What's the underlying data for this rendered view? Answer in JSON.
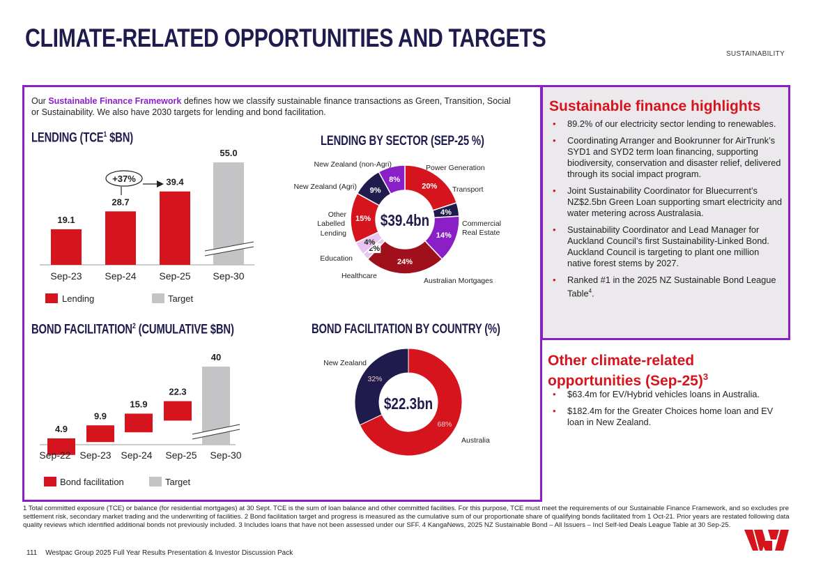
{
  "title": "CLIMATE-RELATED OPPORTUNITIES AND TARGETS",
  "section_tag": "SUSTAINABILITY",
  "intro": {
    "prefix": "Our ",
    "highlight": "Sustainable Finance Framework",
    "suffix": " defines how we classify sustainable finance transactions as Green, Transition, Social or Sustainability. We also have 2030 targets for lending and bond facilitation."
  },
  "headings": {
    "lending_pre": "LENDING (TCE",
    "lending_sup": "1",
    "lending_post": " $BN)",
    "sector": "LENDING BY SECTOR (SEP-25 %)",
    "bond_pre": "BOND FACILITATION",
    "bond_sup": "2",
    "bond_post": " (CUMULATIVE $BN)",
    "country": "BOND FACILITATION BY COUNTRY (%)"
  },
  "colors": {
    "red": "#d5141d",
    "grey": "#c4c3c5",
    "navy": "#1f1c4d",
    "purple": "#8a1fc7",
    "maroon": "#a0101c",
    "pink": "#e8c4f0"
  },
  "chart_data": [
    {
      "id": "lending",
      "type": "bar",
      "title": "LENDING (TCE1 $BN)",
      "categories": [
        "Sep-23",
        "Sep-24",
        "Sep-25",
        "Sep-30"
      ],
      "series": [
        {
          "name": "Lending",
          "values": [
            19.1,
            28.7,
            39.4,
            null
          ]
        },
        {
          "name": "Target",
          "values": [
            null,
            null,
            null,
            55.0
          ]
        }
      ],
      "value_labels": [
        "19.1",
        "28.7",
        "39.4",
        "55.0"
      ],
      "annotation": "+37%",
      "ylim": [
        0,
        60
      ],
      "legend": [
        "Lending",
        "Target"
      ]
    },
    {
      "id": "sector",
      "type": "pie",
      "title": "LENDING BY SECTOR (SEP-25 %)",
      "center_label": "$39.4bn",
      "slices": [
        {
          "label": "Power Generation",
          "value": 20
        },
        {
          "label": "Transport",
          "value": 4
        },
        {
          "label": "Commercial Real Estate",
          "value": 14
        },
        {
          "label": "Australian Mortgages",
          "value": 24
        },
        {
          "label": "Healthcare",
          "value": 2
        },
        {
          "label": "Education",
          "value": 4
        },
        {
          "label": "Other Labelled Lending",
          "value": 15
        },
        {
          "label": "New Zealand (Agri)",
          "value": 9
        },
        {
          "label": "New Zealand (non-Agri)",
          "value": 8
        }
      ]
    },
    {
      "id": "bond",
      "type": "bar",
      "title": "BOND FACILITATION2 (CUMULATIVE $BN)",
      "categories": [
        "Sep-22",
        "Sep-23",
        "Sep-24",
        "Sep-25",
        "Sep-30"
      ],
      "series": [
        {
          "name": "Bond facilitation",
          "values": [
            4.9,
            9.9,
            15.9,
            22.3,
            null
          ]
        },
        {
          "name": "Target",
          "values": [
            null,
            null,
            null,
            null,
            40
          ]
        }
      ],
      "value_labels": [
        "4.9",
        "9.9",
        "15.9",
        "22.3",
        "40"
      ],
      "ylim": [
        0,
        45
      ],
      "legend": [
        "Bond facilitation",
        "Target"
      ]
    },
    {
      "id": "country",
      "type": "pie",
      "title": "BOND FACILITATION BY COUNTRY (%)",
      "center_label": "$22.3bn",
      "slices": [
        {
          "label": "Australia",
          "value": 68,
          "pct": "68%"
        },
        {
          "label": "New Zealand",
          "value": 32,
          "pct": "32%"
        }
      ]
    }
  ],
  "sector_labels": {
    "pcts": [
      "20%",
      "4%",
      "14%",
      "24%",
      "2%",
      "4%",
      "15%",
      "9%",
      "8%"
    ],
    "power": "Power Generation",
    "transport": "Transport",
    "cre1": "Commercial",
    "cre2": "Real Estate",
    "mortgages": "Australian Mortgages",
    "healthcare": "Healthcare",
    "education": "Education",
    "other1": "Other",
    "other2": "Labelled",
    "other3": "Lending",
    "nz_agri": "New Zealand (Agri)",
    "nz_nonagri": "New Zealand (non-Agri)"
  },
  "highlights": {
    "title": "Sustainable finance highlights",
    "items": [
      "89.2% of our electricity sector lending to renewables.",
      "Coordinating Arranger and Bookrunner for AirTrunk’s SYD1 and SYD2 term loan financing, supporting biodiversity, conservation and disaster relief, delivered through its social impact program.",
      "Joint Sustainability Coordinator for Bluecurrent’s NZ$2.5bn Green Loan supporting smart electricity and water metering across Australasia.",
      "Sustainability Coordinator and Lead Manager for Auckland Council’s first Sustainability-Linked Bond. Auckland Council is targeting to plant one million native forest stems by 2027."
    ],
    "last_item": "Ranked #1 in the 2025 NZ Sustainable Bond League Table",
    "last_sup": "4",
    "last_end": "."
  },
  "other": {
    "title": "Other climate-related opportunities (Sep-25)",
    "sup": "3",
    "items": [
      "$63.4m for EV/Hybrid vehicles loans in Australia.",
      "$182.4m for the Greater Choices home loan and EV loan in New Zealand."
    ]
  },
  "footnote": "1 Total committed exposure (TCE) or balance (for residential mortgages) at 30 Sept. TCE is the sum of loan balance and other committed facilities. For this purpose, TCE must meet the requirements of our Sustainable Finance Framework, and so excludes pre settlement risk, secondary market trading and the underwriting of facilities. 2 Bond facilitation target and progress is measured as the cumulative sum of our proportionate share of qualifying bonds facilitated from 1 Oct-21. Prior years are restated following data quality reviews which identified additional bonds not previously included. 3 Includes loans that have not been assessed under our SFF. 4 KangaNews, 2025 NZ Sustainable Bond – All Issuers – Incl Self-led Deals League Table at 30 Sep-25.",
  "footer": {
    "page": "111",
    "text": "Westpac Group 2025 Full Year Results Presentation & Investor Discussion Pack"
  }
}
